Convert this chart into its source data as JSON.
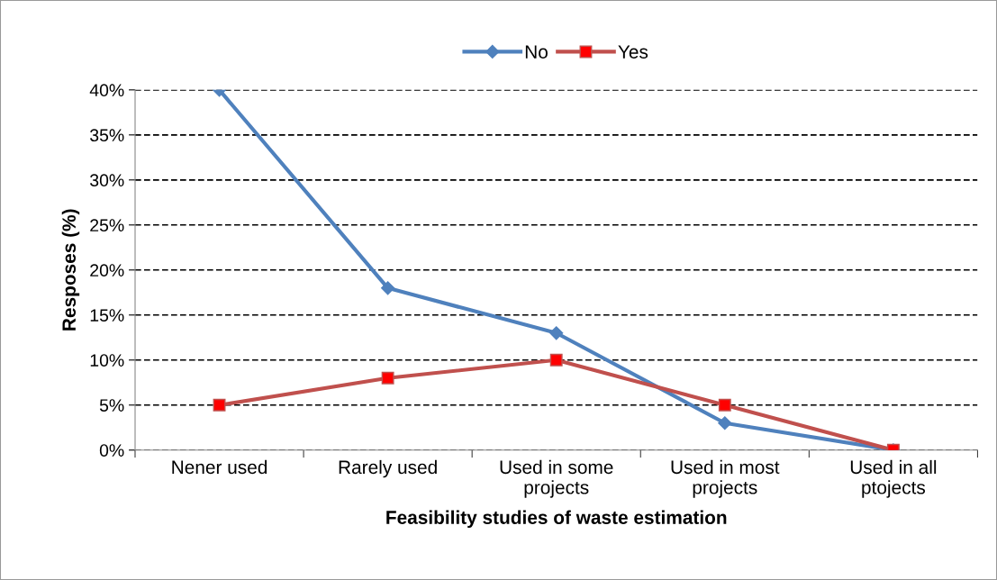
{
  "chart_data": {
    "type": "line",
    "xlabel": "Feasibility studies of waste estimation",
    "ylabel": "Resposes (%)",
    "categories": [
      "Nener used",
      "Rarely used",
      "Used in some\nprojects",
      "Used in most\nprojects",
      "Used in all\nptojects"
    ],
    "series": [
      {
        "name": "No",
        "color": "#4f81bd",
        "marker": "diamond",
        "values": [
          40,
          18,
          13,
          3,
          0
        ]
      },
      {
        "name": "Yes",
        "color": "#c0504d",
        "marker": "square",
        "values": [
          5,
          8,
          10,
          5,
          0
        ]
      }
    ],
    "ylim": [
      0,
      40
    ],
    "yticks": [
      {
        "value": 0,
        "label": "0%"
      },
      {
        "value": 5,
        "label": "5%"
      },
      {
        "value": 10,
        "label": "10%"
      },
      {
        "value": 15,
        "label": "15%"
      },
      {
        "value": 20,
        "label": "20%"
      },
      {
        "value": 25,
        "label": "25%"
      },
      {
        "value": 30,
        "label": "30%"
      },
      {
        "value": 35,
        "label": "35%"
      },
      {
        "value": 40,
        "label": "40%"
      }
    ],
    "grid": "y",
    "line_style": "solid",
    "legend": "top"
  }
}
